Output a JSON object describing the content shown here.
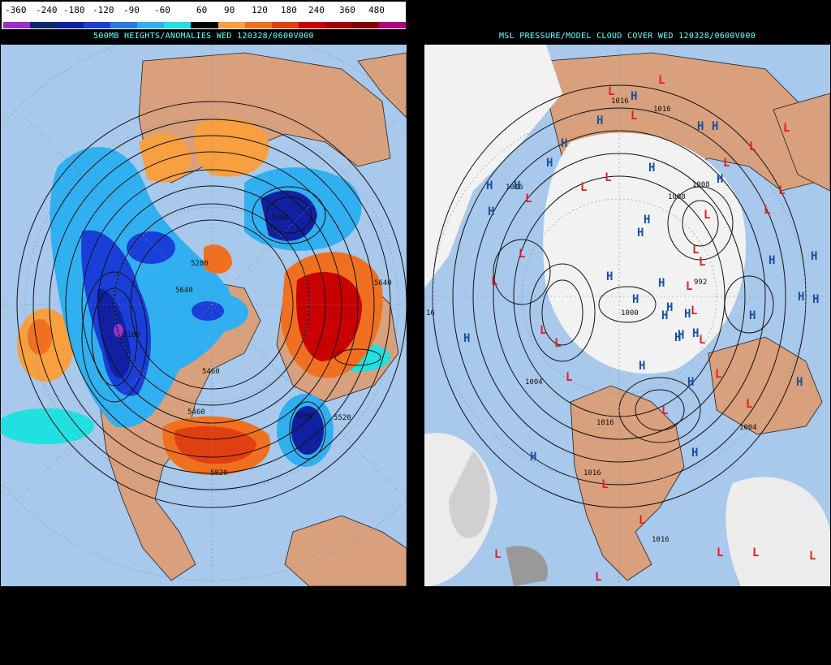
{
  "left": {
    "title": "500MB HEIGHTS/ANOMALIES WED 120328/0600V000",
    "legend": {
      "labels": [
        "-360",
        "-240",
        "-180",
        "-120",
        "-90",
        "-60",
        "60",
        "90",
        "120",
        "180",
        "240",
        "360",
        "480"
      ],
      "colors": [
        "#9b30c8",
        "#0a2a6e",
        "#1020a0",
        "#1a3ed8",
        "#2a78e0",
        "#30b0f0",
        "#20e0e0",
        "#000000",
        "#f8a040",
        "#f07020",
        "#e04010",
        "#c80000",
        "#a00000",
        "#800000",
        "#b0007a"
      ]
    },
    "contour_labels": [
      "5100",
      "5280",
      "5460",
      "5640",
      "5820",
      "5280",
      "5520",
      "5640",
      "5100",
      "5460"
    ],
    "colors": {
      "ocean": "#a8c8ec",
      "land": "#d8a07c"
    }
  },
  "right": {
    "title": "MSL PRESSURE/MODEL CLOUD COVER WED 120328/0600V000",
    "low_symbol": "L",
    "high_symbol": "H",
    "isobar_labels": [
      "1016",
      "1016",
      "1016",
      "1008",
      "1000",
      "992",
      "1004",
      "1004",
      "1016",
      "1016",
      "1016",
      "1008",
      "16"
    ],
    "colors": {
      "low": "#e02020",
      "high": "#1a50a0",
      "ocean": "#a8c8ec",
      "land": "#d8a07c",
      "cloud": "#f2f2f2"
    }
  }
}
